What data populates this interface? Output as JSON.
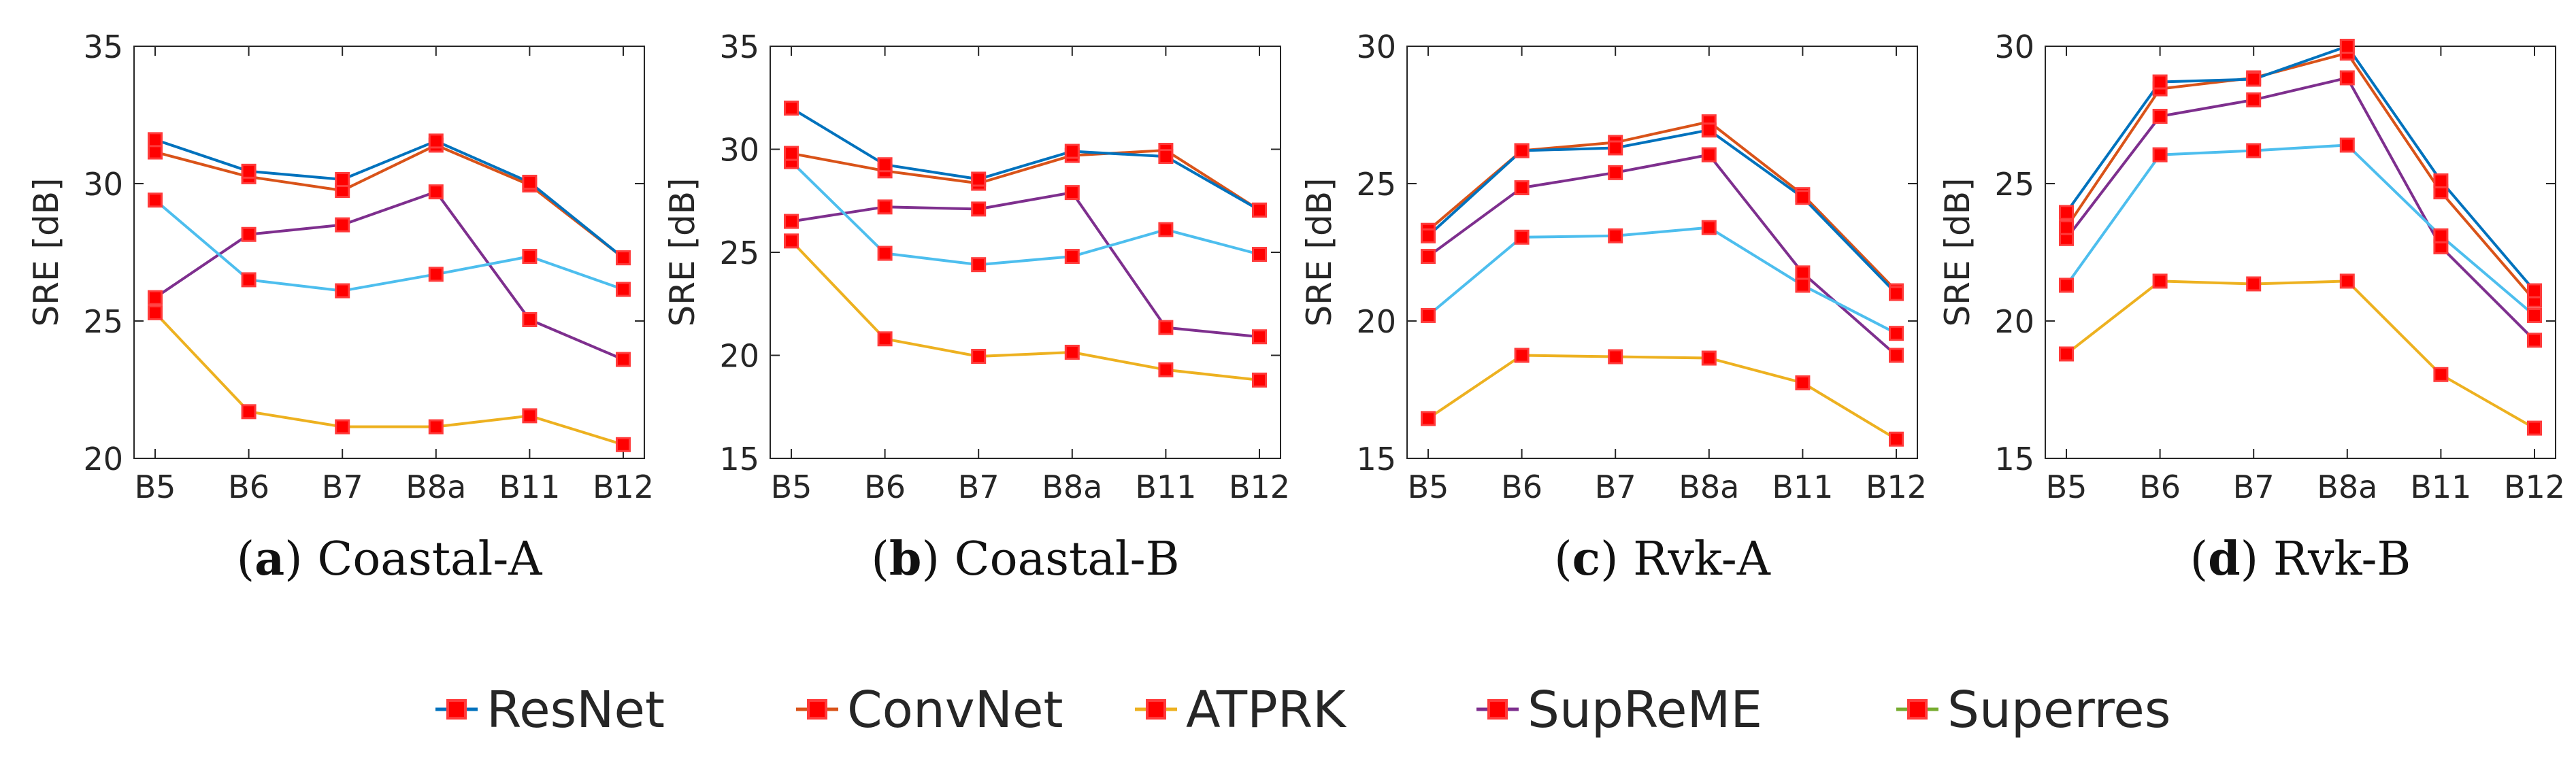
{
  "legend": [
    {
      "name": "ResNet",
      "color": "#0072BD"
    },
    {
      "name": "ConvNet",
      "color": "#D95319"
    },
    {
      "name": "ATPRK",
      "color": "#EDB120"
    },
    {
      "name": "SupReME",
      "color": "#7E2F8E"
    },
    {
      "name": "Superres",
      "color": "#77AC30"
    }
  ],
  "marker": {
    "face": "#FF0000",
    "edge": "#FF3B3B"
  },
  "chart_data": [
    {
      "type": "line",
      "panel_letter": "a",
      "title": "Coastal-A",
      "categories": [
        "B5",
        "B6",
        "B7",
        "B8a",
        "B11",
        "B12"
      ],
      "ylabel": "SRE [dB]",
      "xlabel": "",
      "ylim": [
        20,
        35
      ],
      "yticks": [
        20,
        25,
        30,
        35
      ],
      "series": [
        {
          "name": "ResNet",
          "color": "#0072BD",
          "values": [
            31.6,
            30.45,
            30.15,
            31.55,
            30.05,
            27.3
          ]
        },
        {
          "name": "ConvNet",
          "color": "#D95319",
          "values": [
            31.15,
            30.25,
            29.75,
            31.4,
            29.95,
            27.3
          ]
        },
        {
          "name": "Superres",
          "color": "#4DBEEE",
          "values": [
            29.4,
            26.5,
            26.1,
            26.7,
            27.35,
            26.15
          ]
        },
        {
          "name": "SupReME",
          "color": "#7E2F8E",
          "values": [
            25.85,
            28.15,
            28.5,
            29.7,
            25.05,
            23.6
          ]
        },
        {
          "name": "ATPRK",
          "color": "#EDB120",
          "values": [
            25.3,
            21.7,
            21.15,
            21.15,
            21.55,
            20.5
          ]
        }
      ]
    },
    {
      "type": "line",
      "panel_letter": "b",
      "title": "Coastal-B",
      "categories": [
        "B5",
        "B6",
        "B7",
        "B8a",
        "B11",
        "B12"
      ],
      "ylabel": "SRE [dB]",
      "xlabel": "",
      "ylim": [
        15,
        35
      ],
      "yticks": [
        15,
        20,
        25,
        30,
        35
      ],
      "series": [
        {
          "name": "ResNet",
          "color": "#0072BD",
          "values": [
            32.0,
            29.25,
            28.55,
            29.9,
            29.65,
            27.05
          ]
        },
        {
          "name": "ConvNet",
          "color": "#D95319",
          "values": [
            29.8,
            28.95,
            28.35,
            29.7,
            29.95,
            27.05
          ]
        },
        {
          "name": "Superres",
          "color": "#4DBEEE",
          "values": [
            29.4,
            24.95,
            24.4,
            24.8,
            26.1,
            24.9
          ]
        },
        {
          "name": "SupReME",
          "color": "#7E2F8E",
          "values": [
            26.5,
            27.2,
            27.1,
            27.9,
            21.35,
            20.9
          ]
        },
        {
          "name": "ATPRK",
          "color": "#EDB120",
          "values": [
            25.55,
            20.8,
            19.95,
            20.15,
            19.3,
            18.8
          ]
        }
      ]
    },
    {
      "type": "line",
      "panel_letter": "c",
      "title": "Rvk-A",
      "categories": [
        "B5",
        "B6",
        "B7",
        "B8a",
        "B11",
        "B12"
      ],
      "ylabel": "SRE [dB]",
      "xlabel": "",
      "ylim": [
        15,
        30
      ],
      "yticks": [
        15,
        20,
        25,
        30
      ],
      "series": [
        {
          "name": "ResNet",
          "color": "#0072BD",
          "values": [
            23.1,
            26.2,
            26.3,
            26.95,
            24.5,
            21.0
          ]
        },
        {
          "name": "ConvNet",
          "color": "#D95319",
          "values": [
            23.3,
            26.2,
            26.5,
            27.25,
            24.6,
            21.1
          ]
        },
        {
          "name": "Superres",
          "color": "#4DBEEE",
          "values": [
            20.2,
            23.05,
            23.1,
            23.4,
            21.3,
            19.55
          ]
        },
        {
          "name": "SupReME",
          "color": "#7E2F8E",
          "values": [
            22.35,
            24.85,
            25.4,
            26.05,
            21.75,
            18.75
          ]
        },
        {
          "name": "ATPRK",
          "color": "#EDB120",
          "values": [
            16.45,
            18.75,
            18.7,
            18.65,
            17.75,
            15.7
          ]
        }
      ]
    },
    {
      "type": "line",
      "panel_letter": "d",
      "title": "Rvk-B",
      "categories": [
        "B5",
        "B6",
        "B7",
        "B8a",
        "B11",
        "B12"
      ],
      "ylabel": "SRE [dB]",
      "xlabel": "",
      "ylim": [
        15,
        30
      ],
      "yticks": [
        15,
        20,
        25,
        30
      ],
      "series": [
        {
          "name": "ResNet",
          "color": "#0072BD",
          "values": [
            23.95,
            28.7,
            28.8,
            30.0,
            25.1,
            21.1
          ]
        },
        {
          "name": "ConvNet",
          "color": "#D95319",
          "values": [
            23.4,
            28.45,
            28.85,
            29.75,
            24.7,
            20.75
          ]
        },
        {
          "name": "Superres",
          "color": "#4DBEEE",
          "values": [
            21.3,
            26.05,
            26.2,
            26.4,
            23.1,
            20.2
          ]
        },
        {
          "name": "SupReME",
          "color": "#7E2F8E",
          "values": [
            23.0,
            27.45,
            28.05,
            28.85,
            22.7,
            19.3
          ]
        },
        {
          "name": "ATPRK",
          "color": "#EDB120",
          "values": [
            18.8,
            21.45,
            21.35,
            21.45,
            18.05,
            16.1
          ]
        }
      ]
    }
  ]
}
